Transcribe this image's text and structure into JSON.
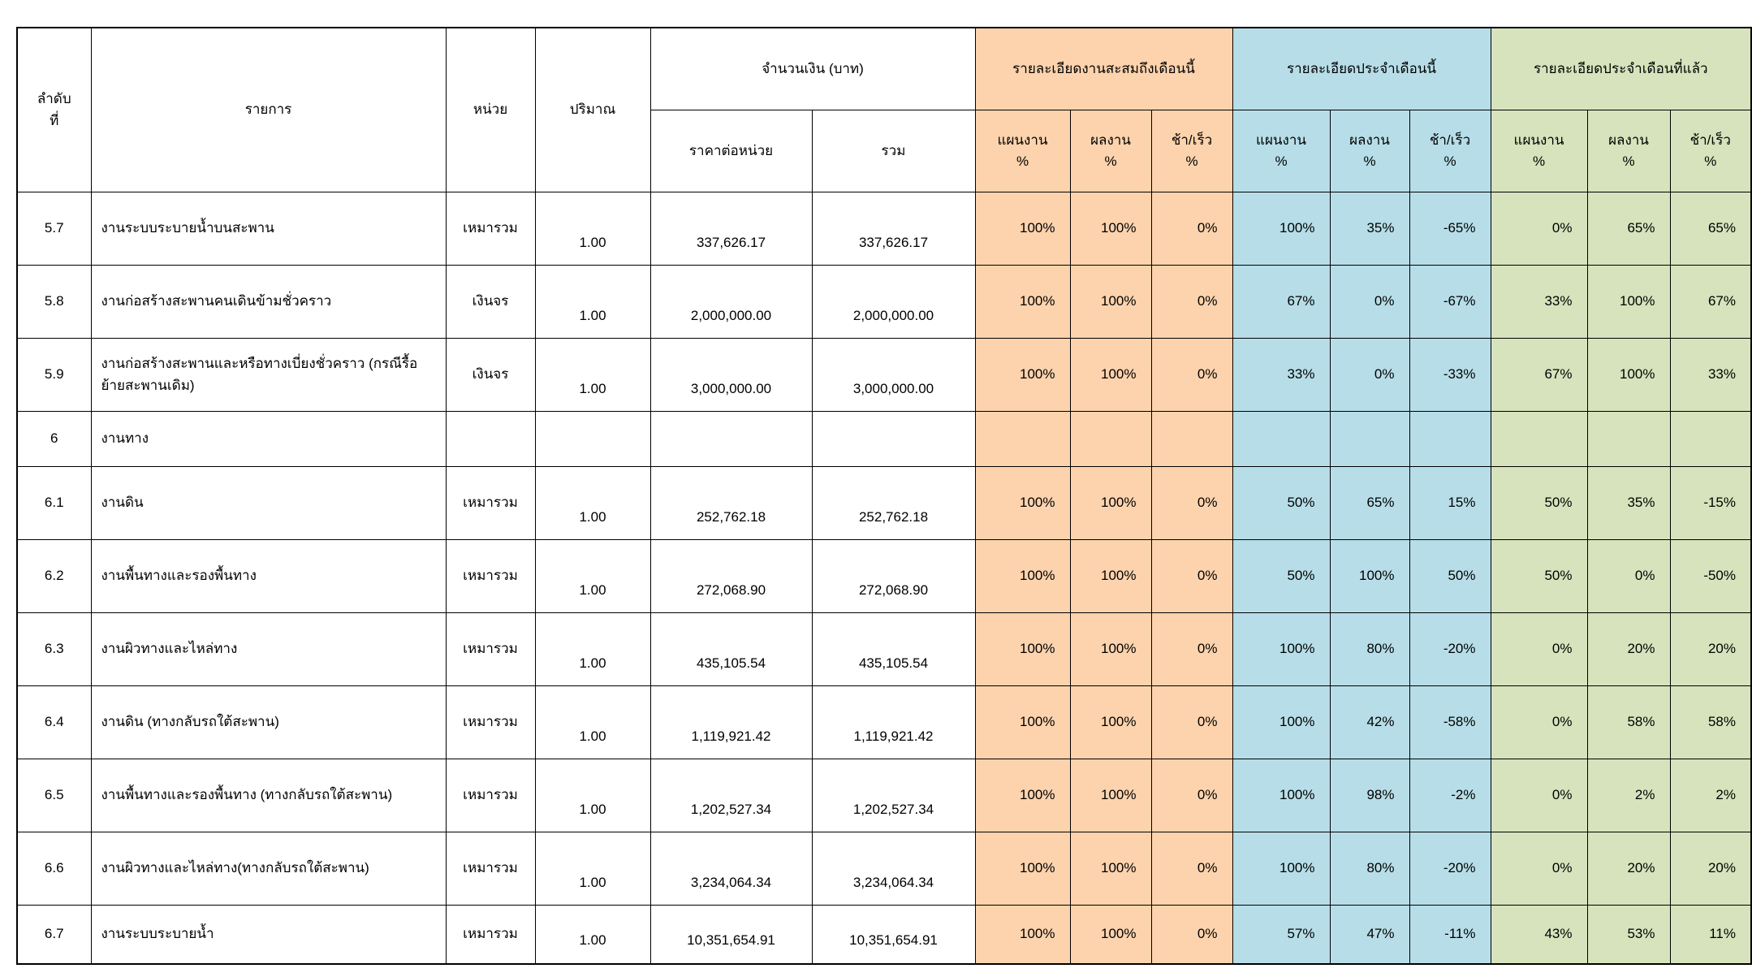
{
  "document_title": "construction-progress-report-table",
  "colors": {
    "cumulative_group": "#FCD3AD",
    "this_month_group": "#B7DEE8",
    "last_month_group": "#D6E3BC",
    "grid": "#000000"
  },
  "header": {
    "index_line1": "ลำดับ",
    "index_line2": "ที่",
    "item": "รายการ",
    "unit": "หน่วย",
    "quantity": "ปริมาณ",
    "amount_group": "จำนวนเงิน (บาท)",
    "unit_price": "ราคาต่อหน่วย",
    "total": "รวม",
    "groups": [
      {
        "label": "รายละเอียดงานสะสมถึงเดือนนี้"
      },
      {
        "label": "รายละเอียดประจำเดือนนี้"
      },
      {
        "label": "รายละเอียดประจำเดือนที่แล้ว"
      }
    ],
    "sub_columns": [
      "แผนงาน",
      "ผลงาน",
      "ช้า/เร็ว"
    ],
    "percent_sign": "%"
  },
  "rows": [
    {
      "no": "5.7",
      "item": "งานระบบระบายน้ำบนสะพาน",
      "unit": "เหมารวม",
      "qty": "1.00",
      "unit_price": "337,626.17",
      "total": "337,626.17",
      "cumulative": [
        "100%",
        "100%",
        "0%"
      ],
      "this_month": [
        "100%",
        "35%",
        "-65%"
      ],
      "last_month": [
        "0%",
        "65%",
        "65%"
      ]
    },
    {
      "no": "5.8",
      "item": "งานก่อสร้างสะพานคนเดินข้ามชั่วคราว",
      "unit": "เงินจร",
      "qty": "1.00",
      "unit_price": "2,000,000.00",
      "total": "2,000,000.00",
      "cumulative": [
        "100%",
        "100%",
        "0%"
      ],
      "this_month": [
        "67%",
        "0%",
        "-67%"
      ],
      "last_month": [
        "33%",
        "100%",
        "67%"
      ]
    },
    {
      "no": "5.9",
      "item": "งานก่อสร้างสะพานและหรือทางเบี่ยงชั่วคราว (กรณีรื้อย้ายสะพานเดิม)",
      "unit": "เงินจร",
      "qty": "1.00",
      "unit_price": "3,000,000.00",
      "total": "3,000,000.00",
      "cumulative": [
        "100%",
        "100%",
        "0%"
      ],
      "this_month": [
        "33%",
        "0%",
        "-33%"
      ],
      "last_month": [
        "67%",
        "100%",
        "33%"
      ]
    },
    {
      "no": "6",
      "item": "งานทาง",
      "unit": "",
      "qty": "",
      "unit_price": "",
      "total": "",
      "cumulative": [
        "",
        "",
        ""
      ],
      "this_month": [
        "",
        "",
        ""
      ],
      "last_month": [
        "",
        "",
        ""
      ]
    },
    {
      "no": "6.1",
      "item": "งานดิน",
      "unit": "เหมารวม",
      "qty": "1.00",
      "unit_price": "252,762.18",
      "total": "252,762.18",
      "cumulative": [
        "100%",
        "100%",
        "0%"
      ],
      "this_month": [
        "50%",
        "65%",
        "15%"
      ],
      "last_month": [
        "50%",
        "35%",
        "-15%"
      ]
    },
    {
      "no": "6.2",
      "item": "งานพื้นทางและรองพื้นทาง",
      "unit": "เหมารวม",
      "qty": "1.00",
      "unit_price": "272,068.90",
      "total": "272,068.90",
      "cumulative": [
        "100%",
        "100%",
        "0%"
      ],
      "this_month": [
        "50%",
        "100%",
        "50%"
      ],
      "last_month": [
        "50%",
        "0%",
        "-50%"
      ]
    },
    {
      "no": "6.3",
      "item": "งานผิวทางและไหล่ทาง",
      "unit": "เหมารวม",
      "qty": "1.00",
      "unit_price": "435,105.54",
      "total": "435,105.54",
      "cumulative": [
        "100%",
        "100%",
        "0%"
      ],
      "this_month": [
        "100%",
        "80%",
        "-20%"
      ],
      "last_month": [
        "0%",
        "20%",
        "20%"
      ]
    },
    {
      "no": "6.4",
      "item": "งานดิน (ทางกลับรถใต้สะพาน)",
      "unit": "เหมารวม",
      "qty": "1.00",
      "unit_price": "1,119,921.42",
      "total": "1,119,921.42",
      "cumulative": [
        "100%",
        "100%",
        "0%"
      ],
      "this_month": [
        "100%",
        "42%",
        "-58%"
      ],
      "last_month": [
        "0%",
        "58%",
        "58%"
      ]
    },
    {
      "no": "6.5",
      "item": "งานพื้นทางและรองพื้นทาง (ทางกลับรถใต้สะพาน)",
      "unit": "เหมารวม",
      "qty": "1.00",
      "unit_price": "1,202,527.34",
      "total": "1,202,527.34",
      "cumulative": [
        "100%",
        "100%",
        "0%"
      ],
      "this_month": [
        "100%",
        "98%",
        "-2%"
      ],
      "last_month": [
        "0%",
        "2%",
        "2%"
      ]
    },
    {
      "no": "6.6",
      "item": "งานผิวทางและไหล่ทาง(ทางกลับรถใต้สะพาน)",
      "unit": "เหมารวม",
      "qty": "1.00",
      "unit_price": "3,234,064.34",
      "total": "3,234,064.34",
      "cumulative": [
        "100%",
        "100%",
        "0%"
      ],
      "this_month": [
        "100%",
        "80%",
        "-20%"
      ],
      "last_month": [
        "0%",
        "20%",
        "20%"
      ]
    },
    {
      "no": "6.7",
      "item": "งานระบบระบายน้ำ",
      "unit": "เหมารวม",
      "qty": "1.00",
      "unit_price": "10,351,654.91",
      "total": "10,351,654.91",
      "cumulative": [
        "100%",
        "100%",
        "0%"
      ],
      "this_month": [
        "57%",
        "47%",
        "-11%"
      ],
      "last_month": [
        "43%",
        "53%",
        "11%"
      ]
    }
  ]
}
